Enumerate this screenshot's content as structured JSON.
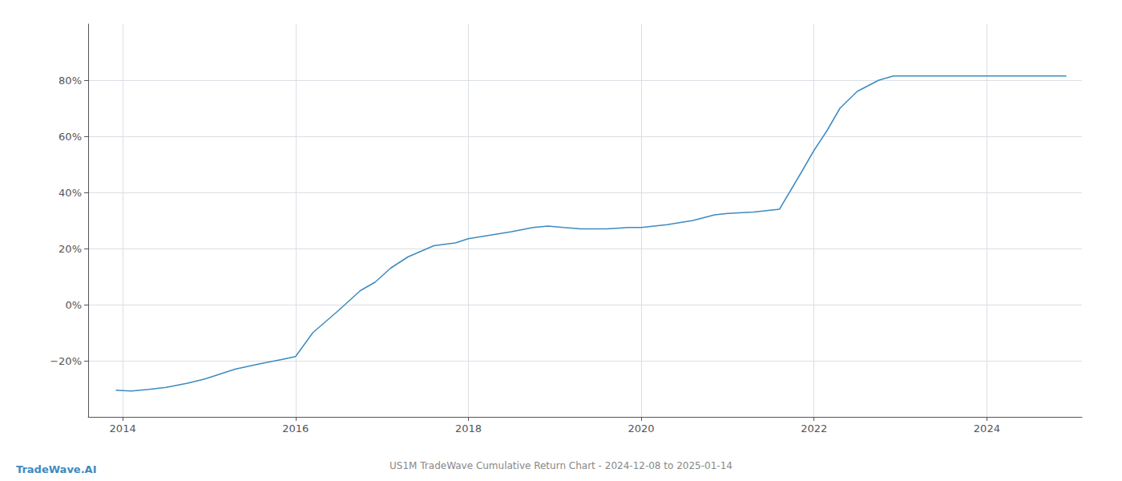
{
  "chart_data": {
    "type": "line",
    "title": "US1M TradeWave Cumulative Return Chart - 2024-12-08 to 2025-01-14",
    "annotations": [
      "TradeWave.AI"
    ],
    "color": "#3d8bbf",
    "x": [
      2013.92,
      2014.1,
      2014.3,
      2014.5,
      2014.75,
      2014.95,
      2015.1,
      2015.3,
      2015.6,
      2015.85,
      2016.0,
      2016.2,
      2016.5,
      2016.75,
      2016.92,
      2017.1,
      2017.3,
      2017.6,
      2017.85,
      2018.0,
      2018.2,
      2018.5,
      2018.75,
      2018.92,
      2019.1,
      2019.3,
      2019.6,
      2019.85,
      2020.0,
      2020.3,
      2020.6,
      2020.85,
      2021.0,
      2021.3,
      2021.6,
      2021.85,
      2022.0,
      2022.15,
      2022.3,
      2022.5,
      2022.75,
      2022.92,
      2023.1,
      2023.4,
      2023.7,
      2023.92,
      2024.1,
      2024.5,
      2024.92
    ],
    "values": [
      -30.5,
      -30.8,
      -30.2,
      -29.5,
      -28.0,
      -26.5,
      -25.0,
      -23.0,
      -21.0,
      -19.5,
      -18.5,
      -10.0,
      -2.0,
      5.0,
      8.0,
      13.0,
      17.0,
      21.0,
      22.0,
      23.5,
      24.5,
      26.0,
      27.5,
      28.0,
      27.5,
      27.0,
      27.0,
      27.5,
      27.5,
      28.5,
      30.0,
      32.0,
      32.5,
      33.0,
      34.0,
      47.0,
      55.0,
      62.0,
      70.0,
      76.0,
      80.0,
      81.5,
      81.5,
      81.5,
      81.5,
      81.5,
      81.5,
      81.5,
      81.5
    ],
    "xlim": [
      2013.6,
      2025.1
    ],
    "ylim": [
      -40,
      100
    ],
    "xticks": [
      2014,
      2016,
      2018,
      2020,
      2022,
      2024
    ],
    "yticks": [
      {
        "value": -20,
        "label": "−20%"
      },
      {
        "value": 0,
        "label": "0%"
      },
      {
        "value": 20,
        "label": "20%"
      },
      {
        "value": 40,
        "label": "40%"
      },
      {
        "value": 60,
        "label": "60%"
      },
      {
        "value": 80,
        "label": "80%"
      }
    ],
    "grid": true
  }
}
